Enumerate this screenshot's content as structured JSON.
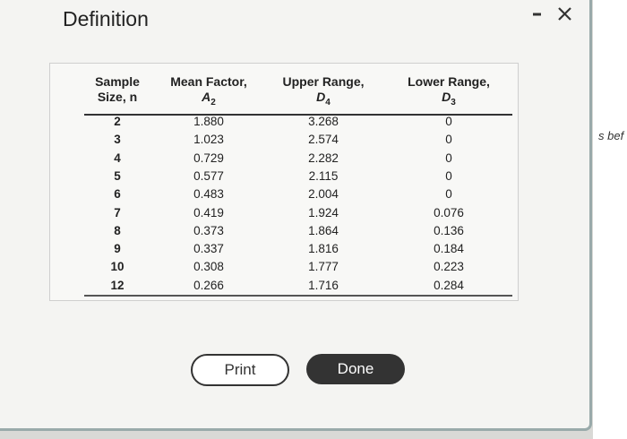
{
  "header": {
    "title": "Definition"
  },
  "table": {
    "columns": [
      {
        "line1": "Sample",
        "line2": "Size, n"
      },
      {
        "line1": "Mean Factor,",
        "symbol": "A",
        "subscript": "2"
      },
      {
        "line1": "Upper Range,",
        "symbol": "D",
        "subscript": "4"
      },
      {
        "line1": "Lower Range,",
        "symbol": "D",
        "subscript": "3"
      }
    ],
    "rows": [
      [
        "2",
        "1.880",
        "3.268",
        "0"
      ],
      [
        "3",
        "1.023",
        "2.574",
        "0"
      ],
      [
        "4",
        "0.729",
        "2.282",
        "0"
      ],
      [
        "5",
        "0.577",
        "2.115",
        "0"
      ],
      [
        "6",
        "0.483",
        "2.004",
        "0"
      ],
      [
        "7",
        "0.419",
        "1.924",
        "0.076"
      ],
      [
        "8",
        "0.373",
        "1.864",
        "0.136"
      ],
      [
        "9",
        "0.337",
        "1.816",
        "0.184"
      ],
      [
        "10",
        "0.308",
        "1.777",
        "0.223"
      ],
      [
        "12",
        "0.266",
        "1.716",
        "0.284"
      ]
    ]
  },
  "buttons": {
    "print": "Print",
    "done": "Done"
  },
  "background_text": "s bef"
}
